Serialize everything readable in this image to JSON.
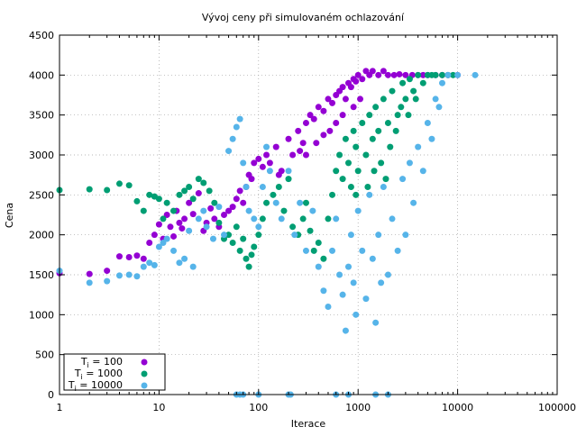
{
  "chart_data": {
    "type": "scatter",
    "title": "Vývoj ceny při simulovaném ochlazování",
    "xlabel": "Iterace",
    "ylabel": "Cena",
    "x_scale": "log",
    "xlim": [
      1,
      100000
    ],
    "ylim": [
      0,
      4500
    ],
    "x_ticks": [
      1,
      10,
      100,
      1000,
      10000,
      100000
    ],
    "x_tick_labels": [
      "1",
      "10",
      "100",
      "1000",
      "10000",
      "100000"
    ],
    "y_ticks": [
      0,
      500,
      1000,
      1500,
      2000,
      2500,
      3000,
      3500,
      4000,
      4500
    ],
    "y_tick_labels": [
      "0",
      "500",
      "1000",
      "1500",
      "2000",
      "2500",
      "3000",
      "3500",
      "4000",
      "4500"
    ],
    "grid": true,
    "legend_position": "bottom-left",
    "series": [
      {
        "name": "T_i = 100",
        "label_main": "T",
        "label_sub": "i",
        "label_rest": " = 100",
        "color": "#9400d3",
        "points": [
          [
            1,
            1520
          ],
          [
            2,
            1510
          ],
          [
            3,
            1550
          ],
          [
            4,
            1730
          ],
          [
            5,
            1720
          ],
          [
            6,
            1740
          ],
          [
            7,
            1700
          ],
          [
            8,
            1900
          ],
          [
            9,
            2000
          ],
          [
            10,
            2130
          ],
          [
            11,
            1950
          ],
          [
            12,
            2250
          ],
          [
            13,
            2100
          ],
          [
            14,
            1980
          ],
          [
            15,
            2300
          ],
          [
            16,
            2150
          ],
          [
            17,
            2080
          ],
          [
            18,
            2200
          ],
          [
            20,
            2400
          ],
          [
            22,
            2260
          ],
          [
            25,
            2520
          ],
          [
            28,
            2050
          ],
          [
            30,
            2150
          ],
          [
            33,
            2330
          ],
          [
            36,
            2200
          ],
          [
            40,
            2100
          ],
          [
            45,
            2250
          ],
          [
            50,
            2300
          ],
          [
            55,
            2350
          ],
          [
            60,
            2450
          ],
          [
            65,
            2550
          ],
          [
            70,
            2400
          ],
          [
            75,
            2600
          ],
          [
            80,
            2750
          ],
          [
            85,
            2700
          ],
          [
            90,
            2900
          ],
          [
            100,
            2950
          ],
          [
            110,
            2850
          ],
          [
            120,
            3000
          ],
          [
            130,
            2900
          ],
          [
            150,
            3100
          ],
          [
            170,
            2800
          ],
          [
            200,
            3200
          ],
          [
            220,
            3000
          ],
          [
            250,
            3300
          ],
          [
            280,
            3150
          ],
          [
            300,
            3400
          ],
          [
            330,
            3500
          ],
          [
            360,
            3450
          ],
          [
            400,
            3600
          ],
          [
            450,
            3550
          ],
          [
            500,
            3700
          ],
          [
            550,
            3650
          ],
          [
            600,
            3750
          ],
          [
            650,
            3800
          ],
          [
            700,
            3850
          ],
          [
            750,
            3700
          ],
          [
            800,
            3900
          ],
          [
            850,
            3850
          ],
          [
            900,
            3950
          ],
          [
            950,
            3920
          ],
          [
            1000,
            4000
          ],
          [
            1100,
            3950
          ],
          [
            1200,
            4050
          ],
          [
            1300,
            4000
          ],
          [
            1400,
            4050
          ],
          [
            1600,
            4000
          ],
          [
            1800,
            4050
          ],
          [
            2000,
            4000
          ],
          [
            2300,
            4000
          ],
          [
            2600,
            4010
          ],
          [
            3000,
            4000
          ],
          [
            3500,
            4000
          ],
          [
            4000,
            4000
          ],
          [
            4500,
            4000
          ],
          [
            5000,
            4000
          ],
          [
            6000,
            4000
          ],
          [
            7000,
            4000
          ],
          [
            8000,
            4000
          ],
          [
            10000,
            4000
          ],
          [
            600,
            3400
          ],
          [
            700,
            3500
          ],
          [
            450,
            3250
          ],
          [
            380,
            3150
          ],
          [
            900,
            3600
          ],
          [
            1050,
            3700
          ],
          [
            520,
            3300
          ],
          [
            260,
            3050
          ],
          [
            160,
            2750
          ],
          [
            300,
            3000
          ]
        ]
      },
      {
        "name": "T_i = 1000",
        "label_main": "T",
        "label_sub": "i",
        "label_rest": " = 1000",
        "color": "#009e73",
        "points": [
          [
            1,
            2560
          ],
          [
            2,
            2570
          ],
          [
            3,
            2560
          ],
          [
            4,
            2640
          ],
          [
            5,
            2620
          ],
          [
            6,
            2420
          ],
          [
            7,
            2300
          ],
          [
            8,
            2500
          ],
          [
            9,
            2480
          ],
          [
            10,
            2450
          ],
          [
            11,
            2200
          ],
          [
            12,
            2400
          ],
          [
            14,
            2300
          ],
          [
            16,
            2500
          ],
          [
            18,
            2550
          ],
          [
            20,
            2600
          ],
          [
            22,
            2450
          ],
          [
            25,
            2700
          ],
          [
            28,
            2650
          ],
          [
            32,
            2550
          ],
          [
            36,
            2400
          ],
          [
            40,
            2150
          ],
          [
            45,
            1950
          ],
          [
            50,
            2000
          ],
          [
            55,
            1900
          ],
          [
            60,
            2100
          ],
          [
            65,
            1800
          ],
          [
            70,
            1950
          ],
          [
            75,
            1700
          ],
          [
            80,
            1600
          ],
          [
            85,
            1750
          ],
          [
            90,
            1850
          ],
          [
            100,
            2000
          ],
          [
            110,
            2200
          ],
          [
            120,
            2400
          ],
          [
            140,
            2500
          ],
          [
            160,
            2600
          ],
          [
            180,
            2300
          ],
          [
            200,
            2700
          ],
          [
            220,
            2100
          ],
          [
            250,
            2000
          ],
          [
            280,
            2200
          ],
          [
            300,
            2400
          ],
          [
            330,
            2050
          ],
          [
            360,
            1800
          ],
          [
            400,
            1900
          ],
          [
            450,
            1700
          ],
          [
            500,
            2200
          ],
          [
            550,
            2500
          ],
          [
            600,
            2800
          ],
          [
            650,
            3000
          ],
          [
            700,
            2700
          ],
          [
            750,
            3200
          ],
          [
            800,
            2900
          ],
          [
            850,
            2600
          ],
          [
            900,
            3300
          ],
          [
            950,
            3100
          ],
          [
            1000,
            2800
          ],
          [
            1100,
            3400
          ],
          [
            1200,
            3000
          ],
          [
            1300,
            3500
          ],
          [
            1400,
            3200
          ],
          [
            1500,
            3600
          ],
          [
            1600,
            3300
          ],
          [
            1800,
            3700
          ],
          [
            2000,
            3400
          ],
          [
            2200,
            3800
          ],
          [
            2500,
            3500
          ],
          [
            2800,
            3900
          ],
          [
            3000,
            3700
          ],
          [
            3300,
            3950
          ],
          [
            3600,
            3800
          ],
          [
            4000,
            4000
          ],
          [
            4500,
            3900
          ],
          [
            5000,
            4000
          ],
          [
            5500,
            4000
          ],
          [
            6000,
            4000
          ],
          [
            7000,
            4000
          ],
          [
            8000,
            4000
          ],
          [
            9000,
            4000
          ],
          [
            1700,
            2900
          ],
          [
            2100,
            3100
          ],
          [
            2400,
            3300
          ],
          [
            1900,
            2700
          ],
          [
            1250,
            2600
          ],
          [
            2700,
            3600
          ],
          [
            3200,
            3500
          ],
          [
            3800,
            3700
          ],
          [
            950,
            2500
          ],
          [
            1450,
            2800
          ]
        ]
      },
      {
        "name": "T_i = 10000",
        "label_main": "T",
        "label_sub": "i",
        "label_rest": " = 10000",
        "color": "#56b4e9",
        "points": [
          [
            1,
            1550
          ],
          [
            2,
            1400
          ],
          [
            3,
            1420
          ],
          [
            4,
            1490
          ],
          [
            5,
            1500
          ],
          [
            6,
            1480
          ],
          [
            7,
            1600
          ],
          [
            8,
            1650
          ],
          [
            9,
            1620
          ],
          [
            10,
            1850
          ],
          [
            11,
            1900
          ],
          [
            12,
            1950
          ],
          [
            14,
            1800
          ],
          [
            16,
            1650
          ],
          [
            18,
            1700
          ],
          [
            20,
            2050
          ],
          [
            22,
            1600
          ],
          [
            25,
            2200
          ],
          [
            28,
            2300
          ],
          [
            30,
            2100
          ],
          [
            35,
            1950
          ],
          [
            40,
            2350
          ],
          [
            45,
            2000
          ],
          [
            50,
            3050
          ],
          [
            55,
            3200
          ],
          [
            60,
            3350
          ],
          [
            65,
            3450
          ],
          [
            70,
            2900
          ],
          [
            75,
            2600
          ],
          [
            80,
            2300
          ],
          [
            90,
            2200
          ],
          [
            100,
            2100
          ],
          [
            110,
            2600
          ],
          [
            120,
            3100
          ],
          [
            130,
            2800
          ],
          [
            150,
            2400
          ],
          [
            170,
            2200
          ],
          [
            200,
            2800
          ],
          [
            230,
            2000
          ],
          [
            260,
            2400
          ],
          [
            300,
            1800
          ],
          [
            350,
            2300
          ],
          [
            400,
            1600
          ],
          [
            450,
            1300
          ],
          [
            500,
            1100
          ],
          [
            550,
            1800
          ],
          [
            600,
            2200
          ],
          [
            650,
            1500
          ],
          [
            700,
            1250
          ],
          [
            750,
            800
          ],
          [
            800,
            1600
          ],
          [
            850,
            2000
          ],
          [
            900,
            1400
          ],
          [
            950,
            1000
          ],
          [
            1000,
            2300
          ],
          [
            1100,
            1800
          ],
          [
            1200,
            1200
          ],
          [
            1300,
            2500
          ],
          [
            1400,
            1700
          ],
          [
            1500,
            900
          ],
          [
            1600,
            2000
          ],
          [
            1700,
            1400
          ],
          [
            1800,
            2600
          ],
          [
            2000,
            1500
          ],
          [
            2200,
            2200
          ],
          [
            2500,
            1800
          ],
          [
            2800,
            2700
          ],
          [
            3000,
            2000
          ],
          [
            3300,
            2900
          ],
          [
            3600,
            2400
          ],
          [
            4000,
            3100
          ],
          [
            4500,
            2800
          ],
          [
            5000,
            3400
          ],
          [
            5500,
            3200
          ],
          [
            6000,
            3700
          ],
          [
            6500,
            3600
          ],
          [
            7000,
            3900
          ],
          [
            8000,
            4000
          ],
          [
            10000,
            4000
          ],
          [
            15000,
            4000
          ],
          [
            60,
            0
          ],
          [
            65,
            0
          ],
          [
            70,
            0
          ],
          [
            100,
            0
          ],
          [
            200,
            0
          ],
          [
            210,
            0
          ],
          [
            600,
            0
          ],
          [
            800,
            0
          ],
          [
            1500,
            0
          ],
          [
            2000,
            0
          ]
        ]
      }
    ]
  }
}
